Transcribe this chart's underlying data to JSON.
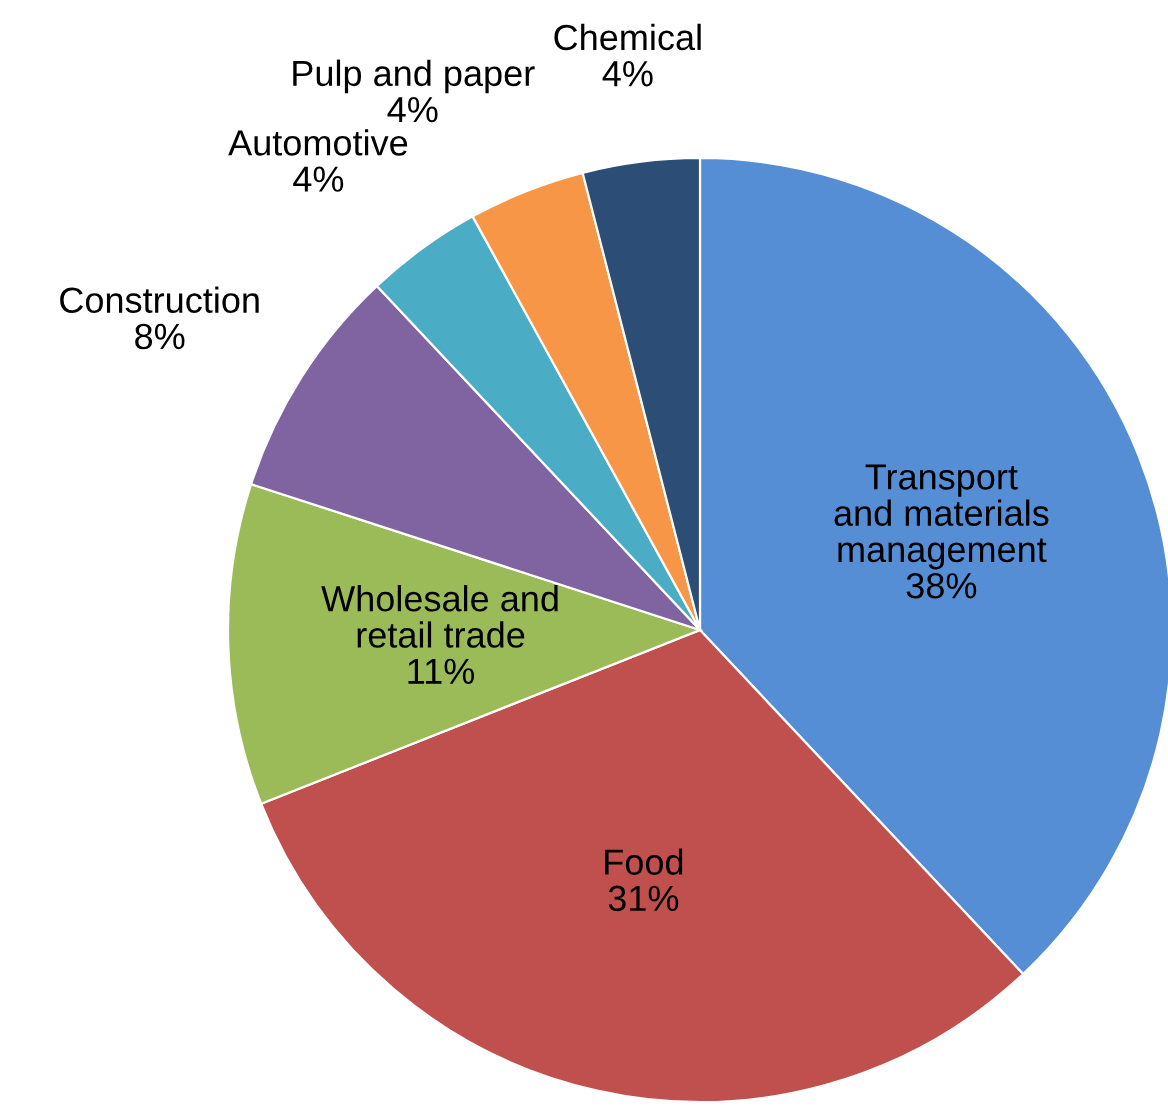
{
  "chart_data": {
    "type": "pie",
    "categories": [
      "Transport\nand materials\nmanagement",
      "Food",
      "Wholesale and\nretail trade",
      "Construction",
      "Automotive",
      "Pulp and paper",
      "Chemical"
    ],
    "values": [
      38,
      31,
      11,
      8,
      4,
      4,
      4
    ],
    "colors": [
      "#558ed5",
      "#c0504d",
      "#9bbb59",
      "#8064a2",
      "#4bacc6",
      "#f79646",
      "#2c4d75"
    ],
    "value_labels": [
      "38%",
      "31%",
      "11%",
      "8%",
      "4%",
      "4%",
      "4%"
    ]
  }
}
